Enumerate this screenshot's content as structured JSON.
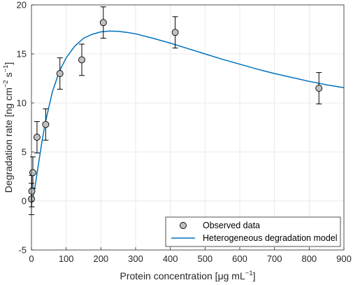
{
  "chart_data": {
    "type": "scatter",
    "xlabel": {
      "main": "Protein concentration [μg mL",
      "sup": "−1",
      "end": "]"
    },
    "ylabel": {
      "main": "Degradation rate [ng cm",
      "sup1": "−2",
      "mid": " s",
      "sup2": "−1",
      "end": "]"
    },
    "xlim": [
      0,
      900
    ],
    "ylim": [
      -5,
      20
    ],
    "xticks": [
      0,
      100,
      200,
      300,
      400,
      500,
      600,
      700,
      800,
      900
    ],
    "yticks": [
      -5,
      0,
      5,
      10,
      15,
      20
    ],
    "grid": true,
    "legend_placement": "bottom-right",
    "series": [
      {
        "name": "Observed data",
        "kind": "points-with-errorbars",
        "color": "#c0c0c0",
        "x": [
          0,
          1,
          4,
          16,
          41,
          82,
          145,
          207,
          414,
          828
        ],
        "y": [
          0.2,
          1.0,
          2.9,
          6.5,
          7.8,
          13.0,
          14.4,
          18.2,
          17.2,
          11.5
        ],
        "err": [
          1.6,
          1.6,
          1.6,
          1.6,
          1.6,
          1.6,
          1.6,
          1.6,
          1.6,
          1.6
        ]
      },
      {
        "name": "Heterogeneous degradation model",
        "kind": "line",
        "color": "#0072bd",
        "x": [
          0,
          5,
          10,
          20,
          30,
          40,
          60,
          80,
          100,
          125,
          150,
          175,
          200,
          225,
          250,
          275,
          300,
          350,
          400,
          450,
          500,
          550,
          600,
          650,
          700,
          750,
          800,
          850,
          900
        ],
        "y": [
          0,
          0.5,
          1.4,
          3.7,
          6.0,
          8.0,
          11.1,
          13.2,
          14.6,
          15.8,
          16.6,
          17.0,
          17.25,
          17.33,
          17.3,
          17.2,
          17.05,
          16.6,
          16.1,
          15.55,
          15.0,
          14.45,
          13.95,
          13.45,
          13.0,
          12.6,
          12.2,
          11.85,
          11.55
        ]
      }
    ]
  }
}
